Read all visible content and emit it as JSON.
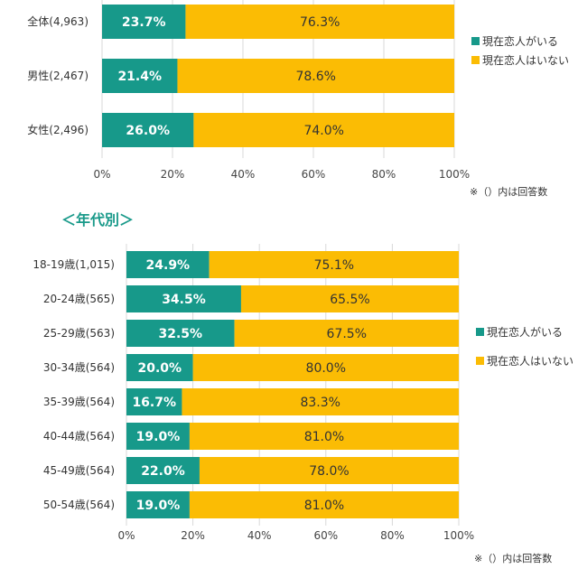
{
  "colors": {
    "has_partner": "#17998a",
    "no_partner": "#fbbc04",
    "grid": "#d9d9d9"
  },
  "section_title": "＜年代別＞",
  "chart_data": [
    {
      "type": "bar",
      "orientation": "horizontal",
      "stacked": "percent",
      "categories": [
        "全体(4,963)",
        "男性(2,467)",
        "女性(2,496)"
      ],
      "series": [
        {
          "name": "現在恋人がいる",
          "values": [
            23.7,
            21.4,
            26.0
          ],
          "labels": [
            "23.7%",
            "21.4%",
            "26.0%"
          ]
        },
        {
          "name": "現在恋人はいない",
          "values": [
            76.3,
            78.6,
            74.0
          ],
          "labels": [
            "76.3%",
            "78.6%",
            "74.0%"
          ]
        }
      ],
      "xlim": [
        0,
        100
      ],
      "xticks": [
        "0%",
        "20%",
        "40%",
        "60%",
        "80%",
        "100%"
      ],
      "grid": true,
      "legend": "right",
      "note": "※（）内は回答数"
    },
    {
      "type": "bar",
      "orientation": "horizontal",
      "stacked": "percent",
      "categories": [
        "18-19歳(1,015)",
        "20-24歳(565)",
        "25-29歳(563)",
        "30-34歳(564)",
        "35-39歳(564)",
        "40-44歳(564)",
        "45-49歳(564)",
        "50-54歳(564)"
      ],
      "series": [
        {
          "name": "現在恋人がいる",
          "values": [
            24.9,
            34.5,
            32.5,
            20.0,
            16.7,
            19.0,
            22.0,
            19.0
          ],
          "labels": [
            "24.9%",
            "34.5%",
            "32.5%",
            "20.0%",
            "16.7%",
            "19.0%",
            "22.0%",
            "19.0%"
          ]
        },
        {
          "name": "現在恋人はいない",
          "values": [
            75.1,
            65.5,
            67.5,
            80.0,
            83.3,
            81.0,
            78.0,
            81.0
          ],
          "labels": [
            "75.1%",
            "65.5%",
            "67.5%",
            "80.0%",
            "83.3%",
            "81.0%",
            "78.0%",
            "81.0%"
          ]
        }
      ],
      "xlim": [
        0,
        100
      ],
      "xticks": [
        "0%",
        "20%",
        "40%",
        "60%",
        "80%",
        "100%"
      ],
      "grid": true,
      "legend": "right",
      "note": "※（）内は回答数"
    }
  ]
}
